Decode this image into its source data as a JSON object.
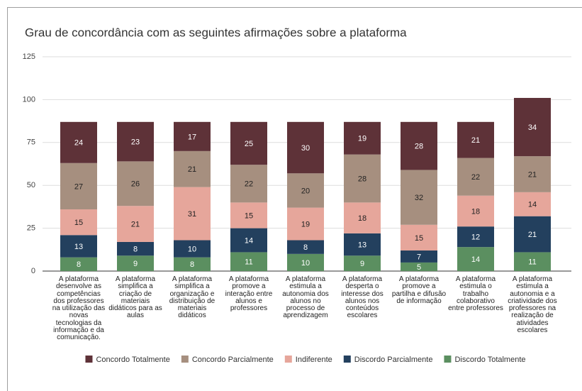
{
  "chart_data": {
    "type": "stacked_bar",
    "title": "Grau de concordância com as seguintes afirmações sobre a plataforma",
    "categories": [
      "A plataforma desenvolve as competências dos professores na utilização das novas tecnologias da informação e da comunicação.",
      "A plataforma simplifica a criação de materiais didáticos para as aulas",
      "A plataforma simplifica a organização e distribuição de materiais didáticos",
      "A plataforma promove a interação entre alunos e professores",
      "A plataforma estimula a autonomia dos alunos no processo de aprendizagem",
      "A plataforma desperta o interesse dos alunos nos conteúdos escolares",
      "A plataforma promove a partilha e difusão de informação",
      "A plataforma estimula o trabalho colaborativo entre professores",
      "A plataforma estimula a autonomia e a criatividade dos professores na realização de atividades escolares"
    ],
    "series": [
      {
        "name": "Concordo Totalmente",
        "color": "#5e3238",
        "values": [
          24,
          23,
          17,
          25,
          30,
          19,
          28,
          21,
          34
        ]
      },
      {
        "name": "Concordo Parcialmente",
        "color": "#a68f7f",
        "values": [
          27,
          26,
          21,
          22,
          20,
          28,
          32,
          22,
          21
        ]
      },
      {
        "name": "Indiferente",
        "color": "#e6a69b",
        "values": [
          15,
          21,
          31,
          15,
          19,
          18,
          15,
          18,
          14
        ]
      },
      {
        "name": "Discordo Parcialmente",
        "color": "#23405e",
        "values": [
          13,
          8,
          10,
          14,
          8,
          13,
          7,
          12,
          21
        ]
      },
      {
        "name": "Discordo Totalmente",
        "color": "#5b8f60",
        "values": [
          8,
          9,
          8,
          11,
          10,
          9,
          5,
          14,
          11
        ]
      }
    ],
    "ylim": [
      0,
      125
    ],
    "yticks": [
      0,
      25,
      50,
      75,
      100,
      125
    ],
    "grid": true,
    "legend": "bottom"
  }
}
